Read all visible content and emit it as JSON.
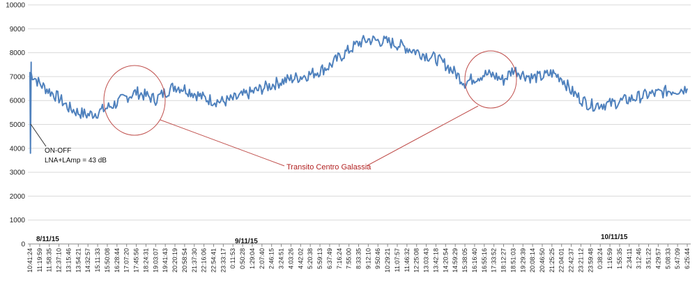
{
  "chart_data": {
    "type": "line",
    "title": "",
    "xlabel": "",
    "ylabel": "",
    "ylim": [
      0,
      10000
    ],
    "y_ticks": [
      0,
      1000,
      2000,
      3000,
      4000,
      5000,
      6000,
      7000,
      8000,
      9000,
      10000
    ],
    "grid": true,
    "line_color": "#4f81bd",
    "annotation_color": "#c0504d",
    "x_categories": [
      "10:41:24",
      "11:19:59",
      "11:58:35",
      "12:37:10",
      "13:15:46",
      "13:54:21",
      "14:32:57",
      "15:11:33",
      "15:50:08",
      "16:28:44",
      "17:07:20",
      "17:45:56",
      "18:24:31",
      "19:03:07",
      "19:41:43",
      "20:20:19",
      "20:58:54",
      "21:37:30",
      "22:16:06",
      "22:54:41",
      "23:33:17",
      "0:11:53",
      "0:50:28",
      "1:29:04",
      "2:07:40",
      "2:46:15",
      "3:24:51",
      "4:03:26",
      "4:42:02",
      "5:20:38",
      "5:59:13",
      "6:37:49",
      "7:16:24",
      "7:55:00",
      "8:33:35",
      "9:12:10",
      "9:50:46",
      "10:29:21",
      "11:07:57",
      "11:46:32",
      "12:25:08",
      "13:03:43",
      "13:42:18",
      "14:20:54",
      "14:59:29",
      "15:38:05",
      "16:16:40",
      "16:55:16",
      "17:33:52",
      "18:12:27",
      "18:51:03",
      "19:29:39",
      "20:08:14",
      "20:46:50",
      "21:25:25",
      "22:04:01",
      "22:42:37",
      "23:21:12",
      "23:59:48",
      "0:38:24",
      "1:16:59",
      "1:55:35",
      "2:34:11",
      "3:12:46",
      "3:51:22",
      "4:29:57",
      "5:08:33",
      "5:47:09",
      "6:25:44"
    ],
    "series": [
      {
        "values": [
          7200,
          6700,
          6400,
          6100,
          5700,
          5500,
          5400,
          5500,
          5700,
          5900,
          6150,
          6350,
          6200,
          6050,
          6350,
          6600,
          6500,
          6300,
          6100,
          6000,
          5950,
          6050,
          6200,
          6350,
          6500,
          6650,
          6800,
          6900,
          7000,
          7100,
          7250,
          7450,
          7800,
          8100,
          8400,
          8550,
          8500,
          8450,
          8350,
          8200,
          8050,
          7900,
          7750,
          7500,
          7150,
          6750,
          6950,
          7100,
          7050,
          6850,
          7300,
          7100,
          6950,
          7000,
          7150,
          6950,
          6400,
          6050,
          5800,
          5850,
          5850,
          5950,
          6050,
          6150,
          6250,
          6300,
          6400,
          6450,
          6500
        ]
      }
    ],
    "annotations": {
      "date_labels": [
        "8/11/15",
        "9/11/15",
        "10/11/15"
      ],
      "note_line1": "ON-OFF",
      "note_line2": "LNA+LAmp = 43 dB",
      "transit_label": "Transito Centro Galassia"
    }
  }
}
